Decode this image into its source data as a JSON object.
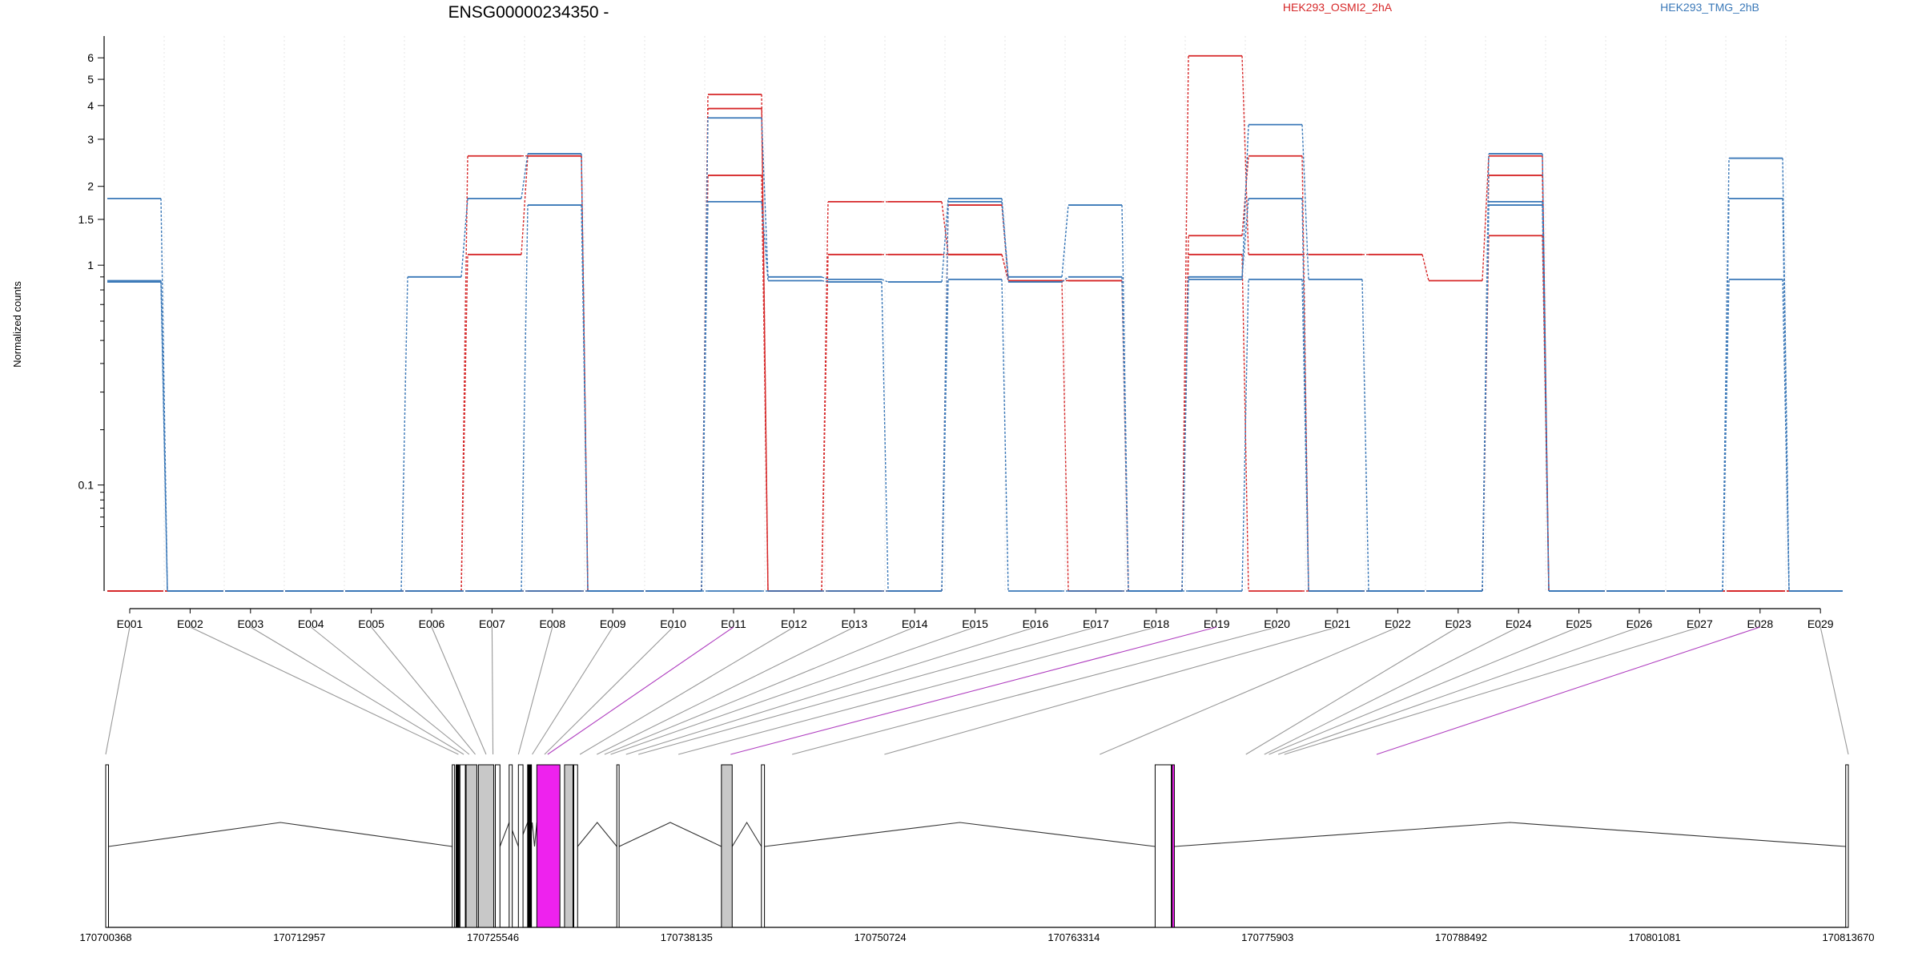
{
  "chart_data": {
    "type": "line",
    "title": "ENSG00000234350 -",
    "ylabel": "Normalized counts",
    "yscale": "log",
    "y_tick_labels": [
      "0.1",
      "1",
      "1.5",
      "2",
      "3",
      "4",
      "5",
      "6"
    ],
    "y_tick_values": [
      0.1,
      1,
      1.5,
      2,
      3,
      4,
      5,
      6
    ],
    "y_zero_value": 0,
    "categories": [
      "E001",
      "E002",
      "E003",
      "E004",
      "E005",
      "E006",
      "E007",
      "E008",
      "E009",
      "E010",
      "E011",
      "E012",
      "E013",
      "E014",
      "E015",
      "E016",
      "E017",
      "E018",
      "E019",
      "E020",
      "E021",
      "E022",
      "E023",
      "E024",
      "E025",
      "E026",
      "E027",
      "E028",
      "E029"
    ],
    "colors": {
      "HEK293_OSMI2_2hA": "#d62728",
      "HEK293_TMG_2hB": "#3a78b8"
    },
    "legend": [
      "HEK293_OSMI2_2hA",
      "HEK293_TMG_2hB"
    ],
    "series": [
      {
        "group": "HEK293_OSMI2_2hA",
        "values": [
          0,
          0,
          0,
          0,
          0,
          0,
          2.6,
          2.6,
          0,
          0,
          4.4,
          0,
          1.75,
          1.75,
          1.1,
          0.87,
          0.87,
          0,
          6.1,
          1.1,
          1.1,
          1.1,
          0.87,
          2.6,
          0,
          0,
          0,
          0,
          0
        ]
      },
      {
        "group": "HEK293_OSMI2_2hA",
        "values": [
          0,
          0,
          0,
          0,
          0,
          0,
          1.1,
          2.6,
          0,
          0,
          3.9,
          0,
          1.1,
          1.1,
          1.1,
          0.87,
          0.87,
          0,
          1.3,
          2.6,
          0,
          0,
          0,
          2.2,
          0,
          0,
          0,
          0,
          0
        ]
      },
      {
        "group": "HEK293_OSMI2_2hA",
        "values": [
          0,
          0,
          0,
          0,
          0,
          0,
          0,
          0,
          0,
          0,
          2.2,
          0,
          0,
          0,
          1.7,
          0.87,
          0,
          0,
          1.1,
          0,
          0,
          0,
          0,
          1.3,
          0,
          0,
          0,
          0,
          0
        ]
      },
      {
        "group": "HEK293_TMG_2hB",
        "values": [
          1.8,
          0,
          0,
          0,
          0,
          0.9,
          1.8,
          2.65,
          0,
          0,
          3.6,
          0.9,
          0.88,
          0.86,
          1.8,
          0.9,
          1.7,
          0,
          0.88,
          3.4,
          0.88,
          0,
          0,
          2.65,
          0,
          0,
          0,
          2.55,
          0
        ]
      },
      {
        "group": "HEK293_TMG_2hB",
        "values": [
          0.87,
          0,
          0,
          0,
          0,
          0,
          0,
          1.7,
          0,
          0,
          1.75,
          0.87,
          0.86,
          0,
          1.75,
          0.86,
          0.9,
          0,
          0.9,
          1.8,
          0,
          0,
          0,
          1.75,
          0,
          0,
          0,
          1.8,
          0
        ]
      },
      {
        "group": "HEK293_TMG_2hB",
        "values": [
          0.86,
          0,
          0,
          0,
          0,
          0,
          0,
          0,
          0,
          0,
          0,
          0,
          0,
          0,
          0.88,
          0,
          0,
          0,
          0,
          0.88,
          0,
          0,
          0,
          1.7,
          0,
          0,
          0,
          0.88,
          0
        ]
      }
    ],
    "genomic_axis": {
      "min": 170700368,
      "max": 170813670,
      "tick_labels": [
        "170700368",
        "170712957",
        "170725546",
        "170738135",
        "170750724",
        "170763314",
        "170775903",
        "170788492",
        "170801081",
        "170813670"
      ]
    },
    "exon_coords": [
      170700368,
      170723300,
      170723650,
      170724000,
      170724400,
      170725100,
      170725546,
      170727200,
      170728100,
      170728900,
      170729100,
      170731200,
      170732300,
      170732800,
      170733200,
      170734200,
      170735000,
      170737600,
      170741000,
      170745000,
      170751000,
      170765000,
      170774500,
      170775700,
      170776000,
      170776600,
      170777000,
      170783000,
      170813670
    ],
    "highlighted_exons": [
      "E011",
      "E019",
      "E028"
    ],
    "gene_model": {
      "exons": [
        {
          "start": 170700368,
          "end": 170700550,
          "fill": "white"
        },
        {
          "start": 170722900,
          "end": 170723050,
          "fill": "white"
        },
        {
          "start": 170723150,
          "end": 170723350,
          "fill": "black"
        },
        {
          "start": 170723400,
          "end": 170723750,
          "fill": "white"
        },
        {
          "start": 170723800,
          "end": 170724500,
          "fill": "#c8c8c8"
        },
        {
          "start": 170724600,
          "end": 170725600,
          "fill": "#c8c8c8"
        },
        {
          "start": 170725700,
          "end": 170726000,
          "fill": "white"
        },
        {
          "start": 170726600,
          "end": 170726800,
          "fill": "white"
        },
        {
          "start": 170727200,
          "end": 170727500,
          "fill": "white"
        },
        {
          "start": 170727800,
          "end": 170728050,
          "fill": "black"
        },
        {
          "start": 170728400,
          "end": 170729900,
          "fill": "#ee22ee"
        },
        {
          "start": 170730200,
          "end": 170730750,
          "fill": "#c8c8c8"
        },
        {
          "start": 170730800,
          "end": 170731050,
          "fill": "white"
        },
        {
          "start": 170733600,
          "end": 170733750,
          "fill": "white"
        },
        {
          "start": 170740400,
          "end": 170741100,
          "fill": "#c8c8c8"
        },
        {
          "start": 170743000,
          "end": 170743200,
          "fill": "white"
        },
        {
          "start": 170768600,
          "end": 170769650,
          "fill": "white"
        },
        {
          "start": 170769700,
          "end": 170769850,
          "fill": "#ee22ee"
        },
        {
          "start": 170813500,
          "end": 170813670,
          "fill": "white"
        }
      ],
      "introns": [
        [
          170700550,
          170722900
        ],
        [
          170731050,
          170733600
        ],
        [
          170733750,
          170740400
        ],
        [
          170741100,
          170743000
        ],
        [
          170743200,
          170768600
        ],
        [
          170769850,
          170813500
        ]
      ],
      "mini_introns": [
        [
          170726000,
          170727800
        ],
        [
          170727950,
          170728400
        ]
      ]
    }
  }
}
